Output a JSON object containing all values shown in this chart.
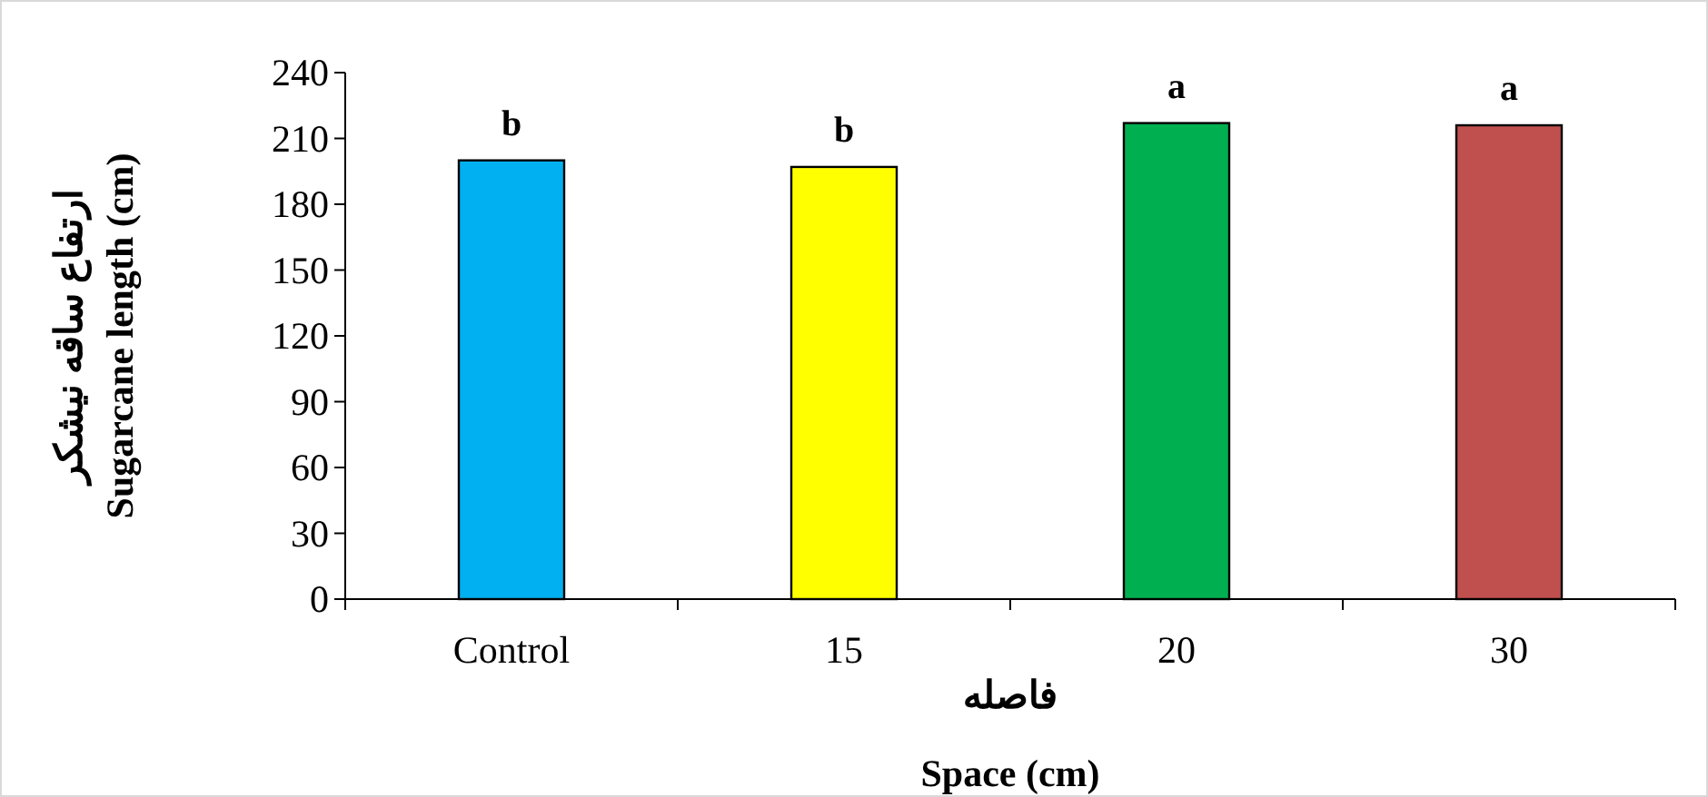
{
  "chart_data": {
    "type": "bar",
    "categories": [
      "Control",
      "15",
      "20",
      "30"
    ],
    "values": [
      200,
      197,
      217,
      216
    ],
    "colors": [
      "#00b0f0",
      "#ffff00",
      "#00b050",
      "#c0504d"
    ],
    "ylim": [
      0,
      240
    ],
    "yticks": [
      0,
      30,
      60,
      90,
      120,
      150,
      180,
      210,
      240
    ],
    "xlabel": "فاصله\nSpace (cm)",
    "ylabel": "ارتفاع ساقه نیشکر\nSugarcane length (cm)",
    "annotations": [
      {
        "text": "b",
        "x": "Control",
        "y": 200
      },
      {
        "text": "b",
        "x": "15",
        "y": 197
      },
      {
        "text": "a",
        "x": "20",
        "y": 217
      },
      {
        "text": "a",
        "x": "30",
        "y": 216
      }
    ],
    "grid": false
  }
}
